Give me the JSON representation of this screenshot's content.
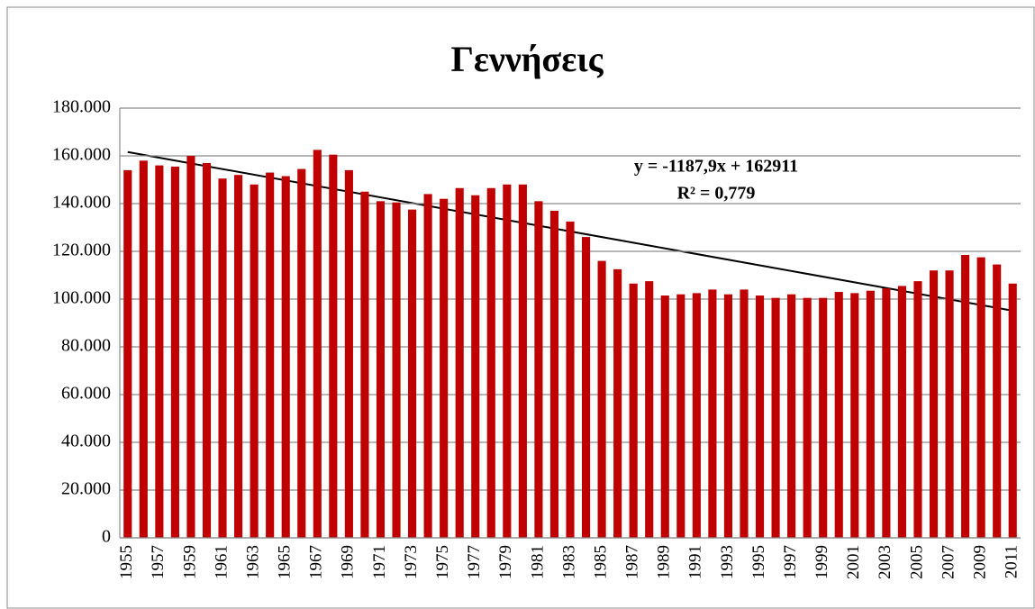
{
  "chart_data": {
    "type": "bar",
    "title": "Γεννήσεις",
    "categories": [
      "1955",
      null,
      "1957",
      null,
      "1959",
      null,
      "1961",
      null,
      "1963",
      null,
      "1965",
      null,
      "1967",
      null,
      "1969",
      null,
      "1971",
      null,
      "1973",
      null,
      "1975",
      null,
      "1977",
      null,
      "1979",
      null,
      "1981",
      null,
      "1983",
      null,
      "1985",
      null,
      "1987",
      null,
      "1989",
      null,
      "1991",
      null,
      "1993",
      null,
      "1995",
      null,
      "1997",
      null,
      "1999",
      null,
      "2001",
      null,
      "2003",
      null,
      "2005",
      null,
      "2007",
      null,
      "2009",
      null,
      "2011"
    ],
    "values": [
      154000,
      158000,
      156000,
      155500,
      160000,
      157000,
      150500,
      152000,
      148000,
      153000,
      151500,
      154500,
      162500,
      160500,
      154000,
      145000,
      141000,
      140500,
      137500,
      144000,
      142000,
      146500,
      143500,
      146500,
      148000,
      148000,
      141000,
      137000,
      132500,
      126000,
      116000,
      112500,
      106500,
      107500,
      101500,
      102000,
      102500,
      104000,
      102000,
      104000,
      101500,
      100500,
      102000,
      100500,
      100500,
      103000,
      102500,
      103500,
      104500,
      105500,
      107500,
      112000,
      112000,
      118500,
      117500,
      114500,
      106500
    ],
    "color": "#c00000",
    "ylim": [
      0,
      180000
    ],
    "yticks": [
      0,
      {
        "value": 20000,
        "label": "20.000"
      },
      {
        "value": 40000,
        "label": "40.000"
      },
      {
        "value": 60000,
        "label": "60.000"
      },
      {
        "value": 80000,
        "label": "80.000"
      },
      {
        "value": 100000,
        "label": "100.000"
      },
      {
        "value": 120000,
        "label": "120.000"
      },
      {
        "value": 140000,
        "label": "140.000"
      },
      {
        "value": 160000,
        "label": "160.000"
      },
      {
        "value": 180000,
        "label": "180.000"
      }
    ],
    "grid": true,
    "trendline": {
      "type": "linear",
      "equation": "y = -1187,9x + 162911",
      "r2": "R² = 0,779",
      "color": "#000000"
    }
  }
}
